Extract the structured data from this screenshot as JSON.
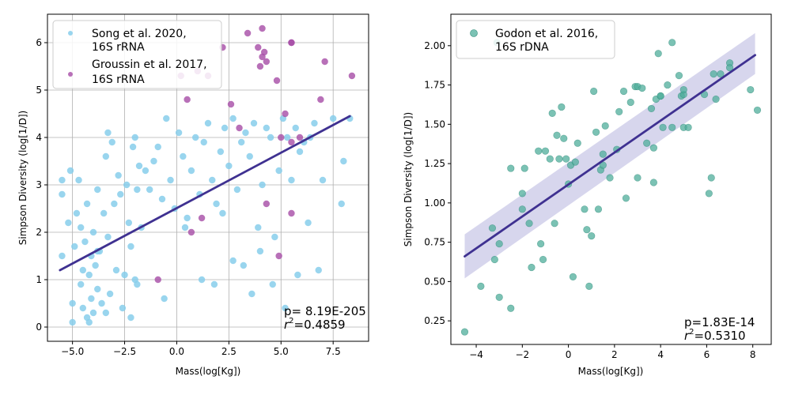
{
  "chart_data": [
    {
      "type": "scatter",
      "xlabel": "Mass(log[Kg])",
      "ylabel": "Simpson Diversity (log[1/D])",
      "xlim": [
        -6.2,
        9.2
      ],
      "ylim": [
        -0.3,
        6.6
      ],
      "xticks": [
        -5.0,
        -2.5,
        0.0,
        2.5,
        5.0,
        7.5
      ],
      "xtick_labels": [
        "−5.0",
        "−2.5",
        "0.0",
        "2.5",
        "5.0",
        "7.5"
      ],
      "yticks": [
        0,
        1,
        2,
        3,
        4,
        5,
        6
      ],
      "ytick_labels": [
        "0",
        "1",
        "2",
        "3",
        "4",
        "5",
        "6"
      ],
      "grid": true,
      "legend_position": "top-left",
      "series": [
        {
          "name": "Song et al. 2020,\n 16S rRNA",
          "color": "#87CEEB",
          "x": [
            -5.5,
            -5.5,
            -5.5,
            -5.2,
            -5.1,
            -5.0,
            -5.0,
            -4.9,
            -4.8,
            -4.7,
            -4.6,
            -4.6,
            -4.5,
            -4.5,
            -4.4,
            -4.3,
            -4.3,
            -4.2,
            -4.1,
            -4.1,
            -4.0,
            -4.0,
            -3.9,
            -3.8,
            -3.8,
            -3.7,
            -3.6,
            -3.5,
            -3.4,
            -3.3,
            -3.3,
            -3.2,
            -3.1,
            -3.0,
            -2.9,
            -2.8,
            -2.7,
            -2.6,
            -2.5,
            -2.4,
            -2.3,
            -2.2,
            -2.1,
            -2.0,
            -2.0,
            -1.9,
            -1.8,
            -1.7,
            -1.5,
            -1.3,
            -1.1,
            -0.9,
            -0.7,
            -0.5,
            -0.3,
            -0.1,
            0.1,
            0.3,
            0.5,
            0.7,
            0.9,
            1.1,
            1.3,
            1.5,
            1.7,
            1.9,
            2.1,
            2.3,
            2.5,
            2.7,
            2.9,
            3.1,
            3.3,
            3.5,
            3.7,
            3.9,
            4.1,
            4.3,
            4.5,
            4.7,
            4.9,
            5.1,
            5.3,
            5.5,
            5.7,
            5.9,
            6.1,
            6.4,
            6.6,
            7.0,
            7.5,
            7.9,
            8.3,
            -4.2,
            -3.8,
            -3.4,
            -2.2,
            -1.9,
            -0.6,
            0.4,
            1.2,
            1.8,
            2.2,
            2.7,
            3.2,
            3.6,
            4.0,
            4.6,
            5.2,
            5.8,
            6.3,
            6.8,
            8.0
          ],
          "y": [
            3.1,
            2.8,
            1.5,
            2.2,
            3.3,
            0.1,
            0.5,
            1.7,
            2.4,
            3.1,
            0.9,
            2.1,
            0.4,
            1.2,
            1.8,
            0.2,
            2.6,
            1.1,
            0.6,
            1.5,
            0.3,
            2.0,
            1.3,
            0.8,
            2.9,
            1.6,
            0.5,
            2.4,
            3.6,
            4.1,
            1.9,
            0.7,
            3.9,
            2.6,
            1.2,
            3.2,
            2.8,
            0.4,
            1.1,
            3.0,
            2.2,
            1.7,
            3.8,
            4.0,
            1.0,
            2.9,
            3.4,
            2.1,
            3.3,
            2.9,
            3.5,
            3.8,
            2.7,
            4.4,
            3.1,
            2.5,
            4.1,
            3.6,
            2.3,
            3.3,
            4.0,
            2.8,
            3.9,
            4.3,
            3.1,
            2.6,
            3.7,
            4.2,
            3.4,
            4.4,
            2.9,
            3.9,
            4.1,
            3.6,
            4.3,
            2.1,
            3.0,
            4.2,
            4.0,
            1.9,
            3.3,
            4.4,
            4.0,
            3.1,
            4.2,
            3.7,
            3.9,
            4.0,
            4.3,
            3.1,
            4.4,
            2.6,
            4.4,
            0.1,
            1.6,
            0.3,
            0.2,
            0.9,
            0.6,
            2.1,
            1.0,
            0.9,
            2.4,
            1.4,
            1.3,
            0.7,
            1.6,
            0.9,
            0.4,
            1.1,
            2.2,
            1.2,
            3.5
          ]
        },
        {
          "name": "Groussin et al. 2017,\n 16S rRNA",
          "color": "#A64CA6",
          "x": [
            3.4,
            3.9,
            4.1,
            4.1,
            4.2,
            4.3,
            4.0,
            5.5,
            5.5,
            2.2,
            0.2,
            0.5,
            1.0,
            1.5,
            2.6,
            3.0,
            4.8,
            5.0,
            5.2,
            5.5,
            5.9,
            6.9,
            7.1,
            8.4,
            -0.9,
            0.7,
            1.2,
            4.3,
            4.9,
            5.5
          ],
          "y": [
            6.2,
            5.9,
            6.3,
            5.7,
            5.8,
            5.6,
            5.5,
            6.0,
            6.0,
            5.9,
            5.3,
            4.8,
            5.4,
            5.3,
            4.7,
            4.2,
            5.2,
            4.0,
            4.5,
            3.9,
            4.0,
            4.8,
            5.6,
            5.3,
            1.0,
            2.0,
            2.3,
            2.6,
            1.5,
            2.4
          ]
        }
      ],
      "fit_line": {
        "x": [
          -5.6,
          8.3
        ],
        "y": [
          1.2,
          4.45
        ],
        "color": "#3F3191"
      },
      "annotation": {
        "p": "p= 8.19E-205",
        "r2_prefix": "r",
        "r2_sup": "2",
        "r2_value": "=0.4859"
      }
    },
    {
      "type": "scatter",
      "xlabel": "Mass(log[Kg])",
      "ylabel": "Simpson Diversity (log[1/D])",
      "xlim": [
        -5.1,
        8.8
      ],
      "ylim": [
        0.1,
        2.2
      ],
      "xticks": [
        -4,
        -2,
        0,
        2,
        4,
        6,
        8
      ],
      "xtick_labels": [
        "−4",
        "−2",
        "0",
        "2",
        "4",
        "6",
        "8"
      ],
      "yticks": [
        0.25,
        0.5,
        0.75,
        1.0,
        1.25,
        1.5,
        1.75,
        2.0
      ],
      "ytick_labels": [
        "0.25",
        "0.50",
        "0.75",
        "1.00",
        "1.25",
        "1.50",
        "1.75",
        "2.00"
      ],
      "grid": false,
      "legend_position": "top-left",
      "series": [
        {
          "name": "Godon et al. 2016,\n 16S rDNA",
          "color": "#4FAE9B",
          "x": [
            -4.5,
            -3.8,
            -3.3,
            -3.2,
            -3.0,
            -3.0,
            -2.5,
            -2.5,
            -2.0,
            -2.0,
            -1.7,
            -1.6,
            -1.3,
            -1.2,
            -1.1,
            -1.0,
            -0.8,
            -0.6,
            -0.5,
            -0.4,
            -0.3,
            -0.2,
            -0.1,
            0.0,
            0.1,
            0.2,
            0.4,
            0.7,
            0.8,
            0.9,
            1.0,
            1.1,
            1.2,
            1.3,
            1.4,
            1.5,
            1.5,
            1.6,
            1.8,
            2.1,
            2.2,
            2.4,
            2.5,
            2.7,
            2.9,
            3.0,
            3.0,
            3.2,
            3.4,
            3.6,
            3.7,
            3.8,
            3.9,
            4.0,
            4.0,
            4.1,
            4.3,
            4.5,
            4.5,
            4.8,
            4.9,
            5.0,
            5.0,
            5.0,
            5.2,
            5.9,
            6.1,
            6.2,
            6.3,
            6.4,
            6.6,
            7.0,
            7.0,
            7.9,
            8.2,
            -3.1,
            -1.9,
            0.3,
            -0.7,
            3.7
          ],
          "y": [
            0.18,
            0.47,
            0.84,
            0.64,
            0.4,
            0.74,
            0.33,
            1.22,
            0.96,
            1.06,
            0.87,
            0.59,
            1.33,
            0.74,
            0.64,
            1.33,
            1.28,
            0.87,
            1.43,
            1.28,
            1.61,
            1.41,
            1.28,
            1.12,
            1.24,
            0.53,
            1.38,
            0.96,
            0.83,
            0.47,
            0.79,
            1.71,
            1.45,
            0.96,
            1.21,
            1.31,
            1.24,
            1.49,
            1.16,
            1.34,
            1.58,
            1.71,
            1.03,
            1.64,
            1.74,
            1.16,
            1.74,
            1.73,
            1.38,
            1.6,
            1.13,
            1.66,
            1.95,
            1.68,
            1.68,
            1.48,
            1.75,
            2.02,
            1.48,
            1.81,
            1.68,
            1.48,
            1.69,
            1.72,
            1.48,
            1.69,
            1.06,
            1.16,
            1.82,
            1.66,
            1.82,
            1.89,
            1.86,
            1.72,
            1.59,
            2.02,
            1.22,
            1.26,
            1.57,
            1.35
          ]
        }
      ],
      "fit_line": {
        "x": [
          -4.5,
          8.1
        ],
        "y": [
          0.66,
          1.94
        ],
        "color": "#3F3191"
      },
      "confidence_band": {
        "x": [
          -4.5,
          8.1
        ],
        "lower": [
          0.52,
          1.82
        ],
        "upper": [
          0.8,
          2.08
        ],
        "color": "#B7B4DE"
      },
      "annotation": {
        "p": "p=1.83E-14",
        "r2_prefix": "r",
        "r2_sup": "2",
        "r2_value": "=0.5310"
      }
    }
  ]
}
